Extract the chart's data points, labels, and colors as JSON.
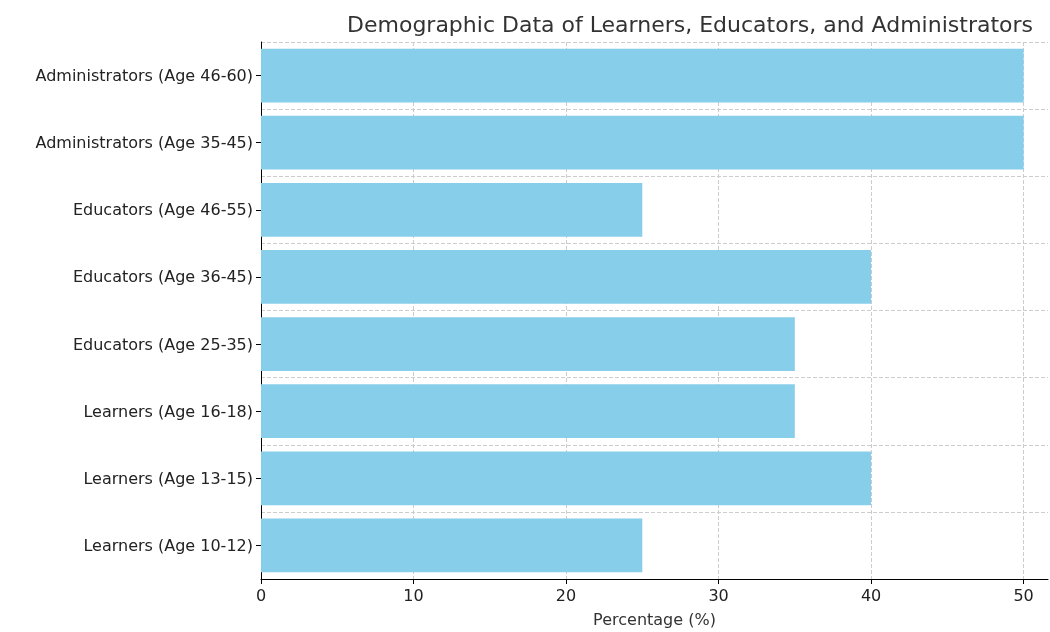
{
  "chart_data": {
    "type": "bar",
    "orientation": "horizontal",
    "title": "Demographic Data of Learners, Educators, and Administrators",
    "xlabel": "Percentage (%)",
    "categories": [
      "Administrators (Age 46-60)",
      "Administrators (Age 35-45)",
      "Educators (Age 46-55)",
      "Educators (Age 36-45)",
      "Educators (Age 25-35)",
      "Learners (Age 16-18)",
      "Learners (Age 13-15)",
      "Learners (Age 10-12)"
    ],
    "values": [
      50,
      50,
      25,
      40,
      35,
      35,
      40,
      25
    ],
    "color": "#87ceeb",
    "xlim": [
      0,
      51.6
    ],
    "xticks": [
      0,
      10,
      20,
      30,
      40,
      50
    ],
    "grid": true
  }
}
